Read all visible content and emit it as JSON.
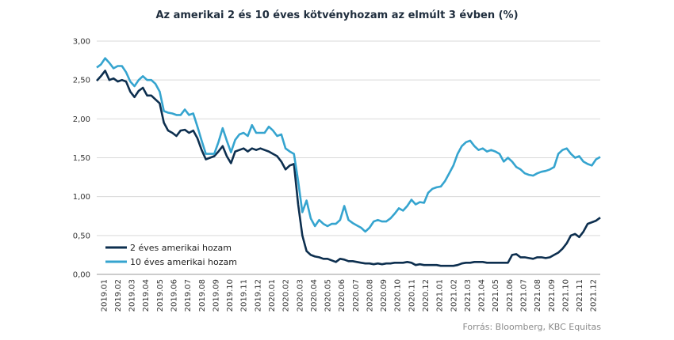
{
  "chart_data": {
    "type": "line",
    "title": "Az amerikai 2 és 10 éves kötvényhozam az elmúlt 3 évben (%)",
    "source": "Forrás: Bloomberg, KBC Equitas",
    "ylim": [
      0,
      3
    ],
    "yticks": [
      "0,00",
      "0,50",
      "1,00",
      "1,50",
      "2,00",
      "2,50",
      "3,00"
    ],
    "grid": "horizontal",
    "legend_position": "bottom-left",
    "x_ticks": [
      "2019.01",
      "2019.02",
      "2019.03",
      "2019.04",
      "2019.05",
      "2019.06",
      "2019.07",
      "2019.08",
      "2019.09",
      "2019.10",
      "2019.11",
      "2019.12",
      "2020.01",
      "2020.02",
      "2020.03",
      "2020.04",
      "2020.05",
      "2020.06",
      "2020.07",
      "2020.08",
      "2020.09",
      "2020.10",
      "2020.11",
      "2020.12",
      "2021.01",
      "2021.02",
      "2021.03",
      "2021.04",
      "2021.05",
      "2021.06",
      "2021.07",
      "2021.08",
      "2021.09",
      "2021.10",
      "2021.11",
      "2021.12"
    ],
    "x_range": [
      0,
      36
    ],
    "series": [
      {
        "name": "2 éves amerikai hozam",
        "color": "#0d2f4f",
        "points": [
          [
            0,
            2.49
          ],
          [
            0.3,
            2.55
          ],
          [
            0.6,
            2.62
          ],
          [
            0.9,
            2.5
          ],
          [
            1.2,
            2.52
          ],
          [
            1.5,
            2.48
          ],
          [
            1.8,
            2.5
          ],
          [
            2.1,
            2.48
          ],
          [
            2.4,
            2.35
          ],
          [
            2.7,
            2.28
          ],
          [
            3.0,
            2.36
          ],
          [
            3.3,
            2.4
          ],
          [
            3.6,
            2.3
          ],
          [
            3.9,
            2.3
          ],
          [
            4.2,
            2.25
          ],
          [
            4.5,
            2.2
          ],
          [
            4.8,
            1.95
          ],
          [
            5.1,
            1.85
          ],
          [
            5.4,
            1.82
          ],
          [
            5.7,
            1.78
          ],
          [
            6.0,
            1.85
          ],
          [
            6.3,
            1.86
          ],
          [
            6.6,
            1.82
          ],
          [
            6.9,
            1.85
          ],
          [
            7.2,
            1.75
          ],
          [
            7.5,
            1.6
          ],
          [
            7.8,
            1.48
          ],
          [
            8.1,
            1.5
          ],
          [
            8.4,
            1.52
          ],
          [
            8.7,
            1.58
          ],
          [
            9.0,
            1.65
          ],
          [
            9.3,
            1.52
          ],
          [
            9.6,
            1.43
          ],
          [
            9.9,
            1.58
          ],
          [
            10.2,
            1.6
          ],
          [
            10.5,
            1.62
          ],
          [
            10.8,
            1.58
          ],
          [
            11.1,
            1.62
          ],
          [
            11.4,
            1.6
          ],
          [
            11.7,
            1.62
          ],
          [
            12.0,
            1.6
          ],
          [
            12.3,
            1.58
          ],
          [
            12.6,
            1.55
          ],
          [
            12.9,
            1.52
          ],
          [
            13.2,
            1.45
          ],
          [
            13.5,
            1.35
          ],
          [
            13.8,
            1.4
          ],
          [
            14.1,
            1.42
          ],
          [
            14.4,
            0.9
          ],
          [
            14.7,
            0.5
          ],
          [
            15.0,
            0.3
          ],
          [
            15.3,
            0.25
          ],
          [
            15.6,
            0.23
          ],
          [
            15.9,
            0.22
          ],
          [
            16.2,
            0.2
          ],
          [
            16.5,
            0.2
          ],
          [
            16.8,
            0.18
          ],
          [
            17.1,
            0.16
          ],
          [
            17.4,
            0.2
          ],
          [
            17.7,
            0.19
          ],
          [
            18.0,
            0.17
          ],
          [
            18.3,
            0.17
          ],
          [
            18.6,
            0.16
          ],
          [
            18.9,
            0.15
          ],
          [
            19.2,
            0.14
          ],
          [
            19.5,
            0.14
          ],
          [
            19.8,
            0.13
          ],
          [
            20.1,
            0.14
          ],
          [
            20.4,
            0.13
          ],
          [
            20.7,
            0.14
          ],
          [
            21.0,
            0.14
          ],
          [
            21.3,
            0.15
          ],
          [
            21.6,
            0.15
          ],
          [
            21.9,
            0.15
          ],
          [
            22.2,
            0.16
          ],
          [
            22.5,
            0.15
          ],
          [
            22.8,
            0.12
          ],
          [
            23.1,
            0.13
          ],
          [
            23.4,
            0.12
          ],
          [
            23.7,
            0.12
          ],
          [
            24.0,
            0.12
          ],
          [
            24.3,
            0.12
          ],
          [
            24.6,
            0.11
          ],
          [
            24.9,
            0.11
          ],
          [
            25.2,
            0.11
          ],
          [
            25.5,
            0.11
          ],
          [
            25.8,
            0.12
          ],
          [
            26.1,
            0.14
          ],
          [
            26.4,
            0.15
          ],
          [
            26.7,
            0.15
          ],
          [
            27.0,
            0.16
          ],
          [
            27.3,
            0.16
          ],
          [
            27.6,
            0.16
          ],
          [
            27.9,
            0.15
          ],
          [
            28.2,
            0.15
          ],
          [
            28.5,
            0.15
          ],
          [
            28.8,
            0.15
          ],
          [
            29.1,
            0.15
          ],
          [
            29.4,
            0.15
          ],
          [
            29.7,
            0.25
          ],
          [
            30.0,
            0.26
          ],
          [
            30.3,
            0.22
          ],
          [
            30.6,
            0.22
          ],
          [
            30.9,
            0.21
          ],
          [
            31.2,
            0.2
          ],
          [
            31.5,
            0.22
          ],
          [
            31.8,
            0.22
          ],
          [
            32.1,
            0.21
          ],
          [
            32.4,
            0.22
          ],
          [
            32.7,
            0.25
          ],
          [
            33.0,
            0.28
          ],
          [
            33.3,
            0.33
          ],
          [
            33.6,
            0.4
          ],
          [
            33.9,
            0.5
          ],
          [
            34.2,
            0.52
          ],
          [
            34.5,
            0.48
          ],
          [
            34.8,
            0.55
          ],
          [
            35.1,
            0.65
          ],
          [
            35.4,
            0.67
          ],
          [
            35.7,
            0.69
          ],
          [
            36.0,
            0.73
          ]
        ]
      },
      {
        "name": "10 éves amerikai hozam",
        "color": "#35a4cf",
        "points": [
          [
            0,
            2.66
          ],
          [
            0.3,
            2.7
          ],
          [
            0.6,
            2.78
          ],
          [
            0.9,
            2.72
          ],
          [
            1.2,
            2.65
          ],
          [
            1.5,
            2.68
          ],
          [
            1.8,
            2.68
          ],
          [
            2.1,
            2.6
          ],
          [
            2.4,
            2.48
          ],
          [
            2.7,
            2.42
          ],
          [
            3.0,
            2.5
          ],
          [
            3.3,
            2.55
          ],
          [
            3.6,
            2.5
          ],
          [
            3.9,
            2.5
          ],
          [
            4.2,
            2.45
          ],
          [
            4.5,
            2.35
          ],
          [
            4.8,
            2.1
          ],
          [
            5.1,
            2.08
          ],
          [
            5.4,
            2.07
          ],
          [
            5.7,
            2.05
          ],
          [
            6.0,
            2.05
          ],
          [
            6.3,
            2.12
          ],
          [
            6.6,
            2.05
          ],
          [
            6.9,
            2.07
          ],
          [
            7.2,
            1.9
          ],
          [
            7.5,
            1.72
          ],
          [
            7.8,
            1.55
          ],
          [
            8.1,
            1.55
          ],
          [
            8.4,
            1.55
          ],
          [
            8.7,
            1.7
          ],
          [
            9.0,
            1.88
          ],
          [
            9.3,
            1.72
          ],
          [
            9.6,
            1.57
          ],
          [
            9.9,
            1.73
          ],
          [
            10.2,
            1.8
          ],
          [
            10.5,
            1.82
          ],
          [
            10.8,
            1.78
          ],
          [
            11.1,
            1.92
          ],
          [
            11.4,
            1.82
          ],
          [
            11.7,
            1.82
          ],
          [
            12.0,
            1.82
          ],
          [
            12.3,
            1.9
          ],
          [
            12.6,
            1.85
          ],
          [
            12.9,
            1.78
          ],
          [
            13.2,
            1.8
          ],
          [
            13.5,
            1.62
          ],
          [
            13.8,
            1.58
          ],
          [
            14.1,
            1.55
          ],
          [
            14.4,
            1.2
          ],
          [
            14.7,
            0.8
          ],
          [
            15.0,
            0.95
          ],
          [
            15.3,
            0.72
          ],
          [
            15.6,
            0.62
          ],
          [
            15.9,
            0.7
          ],
          [
            16.2,
            0.65
          ],
          [
            16.5,
            0.62
          ],
          [
            16.8,
            0.65
          ],
          [
            17.1,
            0.65
          ],
          [
            17.4,
            0.7
          ],
          [
            17.7,
            0.88
          ],
          [
            18.0,
            0.7
          ],
          [
            18.3,
            0.66
          ],
          [
            18.6,
            0.63
          ],
          [
            18.9,
            0.6
          ],
          [
            19.2,
            0.55
          ],
          [
            19.5,
            0.6
          ],
          [
            19.8,
            0.68
          ],
          [
            20.1,
            0.7
          ],
          [
            20.4,
            0.68
          ],
          [
            20.7,
            0.68
          ],
          [
            21.0,
            0.72
          ],
          [
            21.3,
            0.78
          ],
          [
            21.6,
            0.85
          ],
          [
            21.9,
            0.82
          ],
          [
            22.2,
            0.88
          ],
          [
            22.5,
            0.96
          ],
          [
            22.8,
            0.9
          ],
          [
            23.1,
            0.93
          ],
          [
            23.4,
            0.92
          ],
          [
            23.7,
            1.05
          ],
          [
            24.0,
            1.1
          ],
          [
            24.3,
            1.12
          ],
          [
            24.6,
            1.13
          ],
          [
            24.9,
            1.2
          ],
          [
            25.2,
            1.3
          ],
          [
            25.5,
            1.4
          ],
          [
            25.8,
            1.55
          ],
          [
            26.1,
            1.65
          ],
          [
            26.4,
            1.7
          ],
          [
            26.7,
            1.72
          ],
          [
            27.0,
            1.65
          ],
          [
            27.3,
            1.6
          ],
          [
            27.6,
            1.62
          ],
          [
            27.9,
            1.58
          ],
          [
            28.2,
            1.6
          ],
          [
            28.5,
            1.58
          ],
          [
            28.8,
            1.55
          ],
          [
            29.1,
            1.45
          ],
          [
            29.4,
            1.5
          ],
          [
            29.7,
            1.45
          ],
          [
            30.0,
            1.38
          ],
          [
            30.3,
            1.35
          ],
          [
            30.6,
            1.3
          ],
          [
            30.9,
            1.28
          ],
          [
            31.2,
            1.27
          ],
          [
            31.5,
            1.3
          ],
          [
            31.8,
            1.32
          ],
          [
            32.1,
            1.33
          ],
          [
            32.4,
            1.35
          ],
          [
            32.7,
            1.38
          ],
          [
            33.0,
            1.55
          ],
          [
            33.3,
            1.6
          ],
          [
            33.6,
            1.62
          ],
          [
            33.9,
            1.55
          ],
          [
            34.2,
            1.5
          ],
          [
            34.5,
            1.52
          ],
          [
            34.8,
            1.45
          ],
          [
            35.1,
            1.42
          ],
          [
            35.4,
            1.4
          ],
          [
            35.7,
            1.48
          ],
          [
            36.0,
            1.51
          ]
        ]
      }
    ]
  }
}
